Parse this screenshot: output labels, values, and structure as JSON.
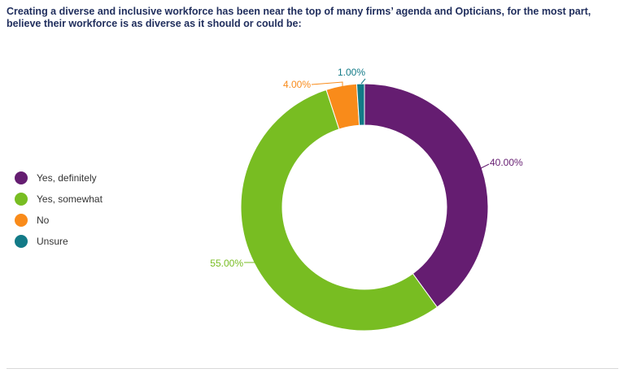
{
  "title": "Creating a diverse and inclusive workforce has been near the top of many firms’ agenda and Opticians, for the most part, believe their workforce is as diverse as it should or could be:",
  "chart_data": {
    "type": "pie",
    "donut": true,
    "legend_position": "left",
    "categories": [
      "Yes, definitely",
      "Yes, somewhat",
      "No",
      "Unsure"
    ],
    "values": [
      40.0,
      55.0,
      4.0,
      1.0
    ],
    "labels": [
      "40.00%",
      "55.00%",
      "4.00%",
      "1.00%"
    ],
    "colors": [
      "#651d71",
      "#78bd22",
      "#f98b1a",
      "#127a87"
    ]
  }
}
